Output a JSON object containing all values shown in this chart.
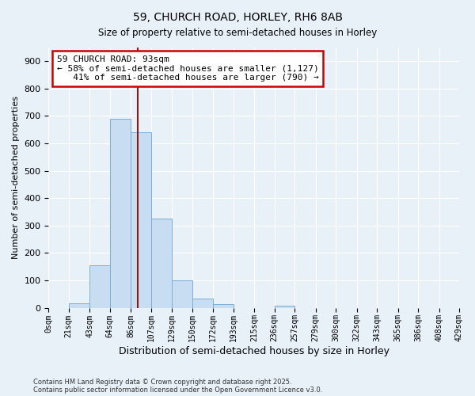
{
  "title": "59, CHURCH ROAD, HORLEY, RH6 8AB",
  "subtitle": "Size of property relative to semi-detached houses in Horley",
  "xlabel": "Distribution of semi-detached houses by size in Horley",
  "ylabel": "Number of semi-detached properties",
  "bar_edges": [
    0,
    21,
    43,
    64,
    86,
    107,
    129,
    150,
    172,
    193,
    215,
    236,
    257,
    279,
    300,
    322,
    343,
    365,
    386,
    408,
    429
  ],
  "bar_heights": [
    0,
    15,
    155,
    690,
    640,
    325,
    100,
    32,
    12,
    0,
    0,
    8,
    0,
    0,
    0,
    0,
    0,
    0,
    0,
    0
  ],
  "bar_color": "#c9ddf2",
  "bar_edge_color": "#7aaed6",
  "property_size": 93,
  "vline_color": "#8b1a1a",
  "annotation_line1": "59 CHURCH ROAD: 93sqm",
  "annotation_line2": "← 58% of semi-detached houses are smaller (1,127)",
  "annotation_line3": "   41% of semi-detached houses are larger (790) →",
  "annotation_box_color": "#ffffff",
  "annotation_box_edge": "#cc0000",
  "ylim": [
    0,
    950
  ],
  "yticks": [
    0,
    100,
    200,
    300,
    400,
    500,
    600,
    700,
    800,
    900
  ],
  "background_color": "#e8f0f8",
  "grid_color": "#ffffff",
  "footer_line1": "Contains HM Land Registry data © Crown copyright and database right 2025.",
  "footer_line2": "Contains public sector information licensed under the Open Government Licence v3.0."
}
